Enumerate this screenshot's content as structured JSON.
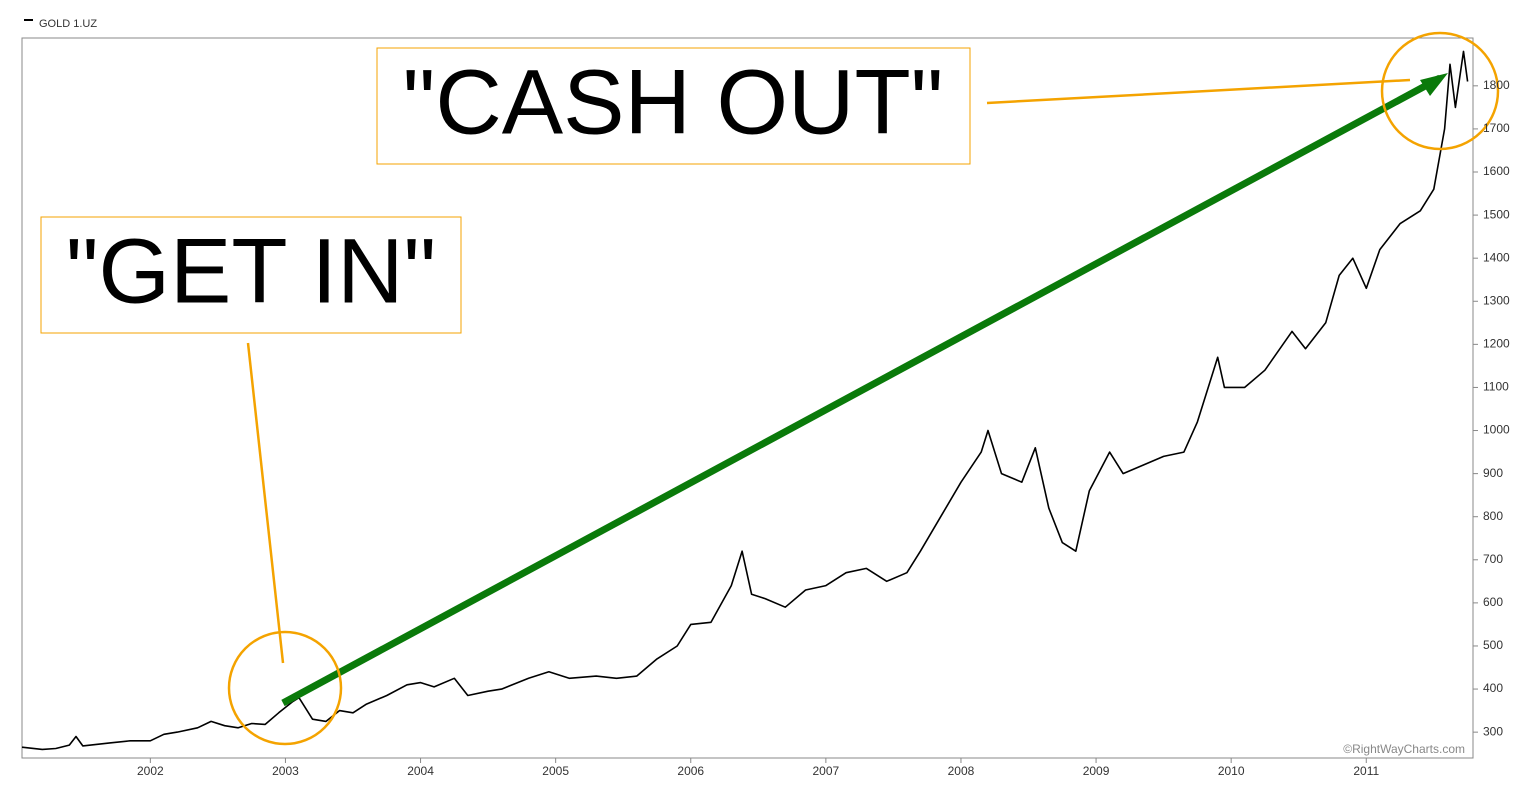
{
  "chart_data": {
    "type": "line",
    "series": [
      {
        "name": "GOLD 1.UZ",
        "color": "#000000",
        "x": [
          2001.05,
          2001.2,
          2001.3,
          2001.4,
          2001.45,
          2001.5,
          2001.7,
          2001.85,
          2002.0,
          2002.1,
          2002.2,
          2002.35,
          2002.45,
          2002.55,
          2002.65,
          2002.75,
          2002.85,
          2002.95,
          2003.05,
          2003.1,
          2003.2,
          2003.3,
          2003.4,
          2003.5,
          2003.6,
          2003.75,
          2003.9,
          2004.0,
          2004.1,
          2004.25,
          2004.35,
          2004.5,
          2004.6,
          2004.8,
          2004.95,
          2005.1,
          2005.3,
          2005.45,
          2005.6,
          2005.75,
          2005.9,
          2006.0,
          2006.15,
          2006.3,
          2006.38,
          2006.45,
          2006.55,
          2006.7,
          2006.85,
          2007.0,
          2007.15,
          2007.3,
          2007.45,
          2007.6,
          2007.7,
          2007.85,
          2008.0,
          2008.15,
          2008.2,
          2008.3,
          2008.45,
          2008.55,
          2008.65,
          2008.75,
          2008.85,
          2008.95,
          2009.1,
          2009.2,
          2009.35,
          2009.5,
          2009.65,
          2009.75,
          2009.9,
          2009.95,
          2010.1,
          2010.25,
          2010.45,
          2010.55,
          2010.7,
          2010.8,
          2010.9,
          2011.0,
          2011.1,
          2011.25,
          2011.4,
          2011.5,
          2011.58,
          2011.62,
          2011.66,
          2011.72,
          2011.75
        ],
        "values": [
          265,
          260,
          262,
          270,
          290,
          268,
          275,
          280,
          280,
          295,
          300,
          310,
          325,
          315,
          310,
          320,
          318,
          345,
          370,
          380,
          330,
          325,
          350,
          345,
          365,
          385,
          410,
          415,
          405,
          425,
          385,
          395,
          400,
          425,
          440,
          425,
          430,
          425,
          430,
          470,
          500,
          550,
          555,
          640,
          720,
          620,
          610,
          590,
          630,
          640,
          670,
          680,
          650,
          670,
          720,
          800,
          880,
          950,
          1000,
          900,
          880,
          960,
          820,
          740,
          720,
          860,
          950,
          900,
          920,
          940,
          950,
          1020,
          1170,
          1100,
          1100,
          1140,
          1230,
          1190,
          1250,
          1360,
          1400,
          1330,
          1420,
          1480,
          1510,
          1560,
          1700,
          1850,
          1750,
          1880,
          1810
        ]
      }
    ],
    "xlim": [
      2001.05,
      2011.79
    ],
    "xticks": [
      2002,
      2003,
      2004,
      2005,
      2006,
      2007,
      2008,
      2009,
      2010,
      2011
    ],
    "ylim": [
      240,
      1911
    ],
    "yticks": [
      300,
      400,
      500,
      600,
      700,
      800,
      900,
      1000,
      1100,
      1200,
      1300,
      1400,
      1500,
      1600,
      1700,
      1800
    ],
    "annotations": [
      "\"GET IN\"",
      "\"CASH OUT\"",
      "©RightWayCharts.com"
    ],
    "grid": false
  }
}
